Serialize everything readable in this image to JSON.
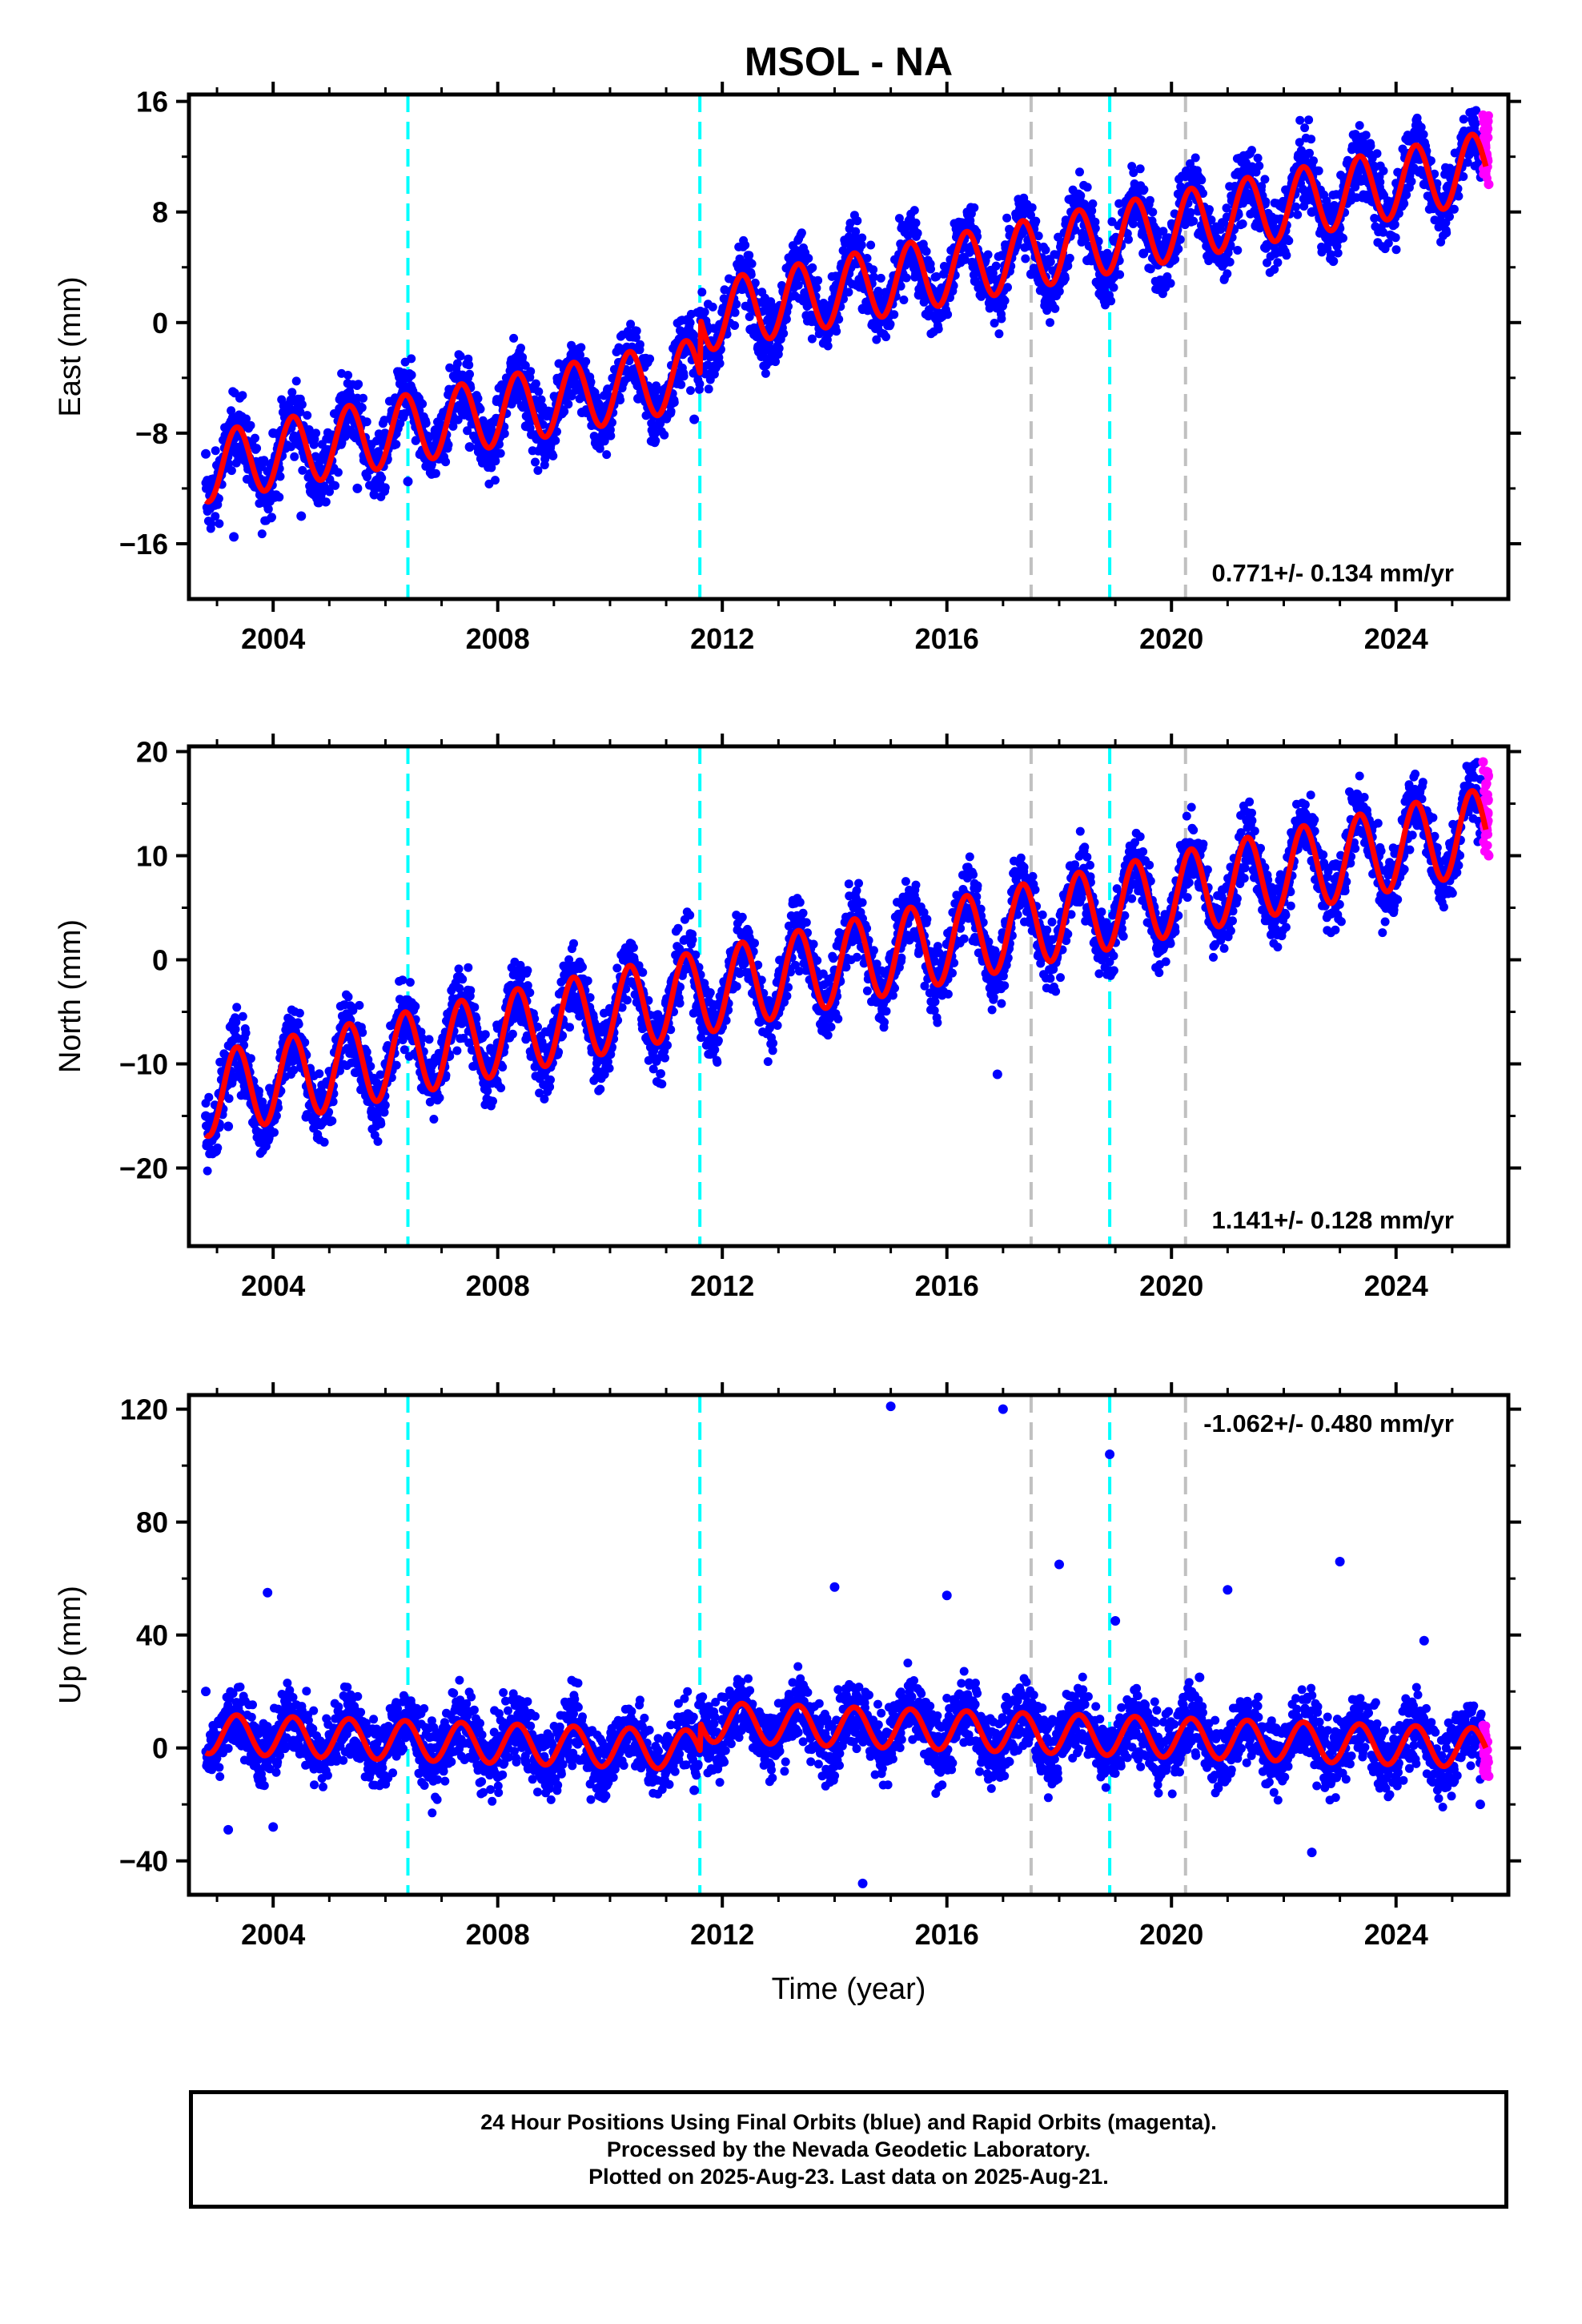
{
  "chart_data": [
    {
      "type": "scatter",
      "panel": "east",
      "title": "MSOL - NA",
      "ylabel": "East (mm)",
      "xlabel": "",
      "xlim": [
        2002.5,
        2026.0
      ],
      "ylim": [
        -20,
        16.5
      ],
      "yticks": [
        16,
        8,
        0,
        -8,
        -16
      ],
      "ytick_labels": [
        "16",
        "8",
        "0",
        "-8",
        "-16"
      ],
      "xticks": [
        2004,
        2008,
        2012,
        2016,
        2020,
        2024
      ],
      "xtick_labels": [
        "2004",
        "2008",
        "2012",
        "2016",
        "2020",
        "2024"
      ],
      "rate_label": "0.771+/- 0.134 mm/yr",
      "rate_position": "bottom-right",
      "trend": {
        "start_year": 2002.8,
        "end_year": 2025.6,
        "start_value": -8.5,
        "end_value": 9.3,
        "seasonal_amplitude": 2.5
      },
      "offsets": [
        {
          "year": 2011.6,
          "value": 4.0
        }
      ],
      "series": [
        {
          "color": "#0000ff",
          "x": [
            2002.8,
            2003.3,
            2004.0,
            2004.5,
            2005.5,
            2006.4,
            2007.5,
            2008.5,
            2009.5,
            2010.5,
            2011.5,
            2011.7,
            2012.5,
            2013.5,
            2014.5,
            2015.5,
            2016.5,
            2017.5,
            2018.5,
            2019.5,
            2020.5,
            2021.5,
            2022.5,
            2023.5,
            2024.5,
            2025.5
          ],
          "y": [
            -9.5,
            -15.5,
            -8.0,
            -14.0,
            -12.0,
            -11.5,
            -9.0,
            -7.5,
            -6.5,
            -5.5,
            -7.0,
            0.0,
            -0.5,
            0.5,
            1.0,
            2.0,
            3.0,
            3.5,
            4.5,
            5.0,
            6.5,
            7.0,
            8.0,
            9.0,
            10.0,
            11.0
          ]
        },
        {
          "color": "#ff00ff",
          "x": [
            2025.55,
            2025.6,
            2025.65
          ],
          "y": [
            15.0,
            12.0,
            10.0
          ]
        }
      ],
      "vlines": [
        {
          "x": 2006.4,
          "color": "#00ffff"
        },
        {
          "x": 2011.6,
          "color": "#00ffff"
        },
        {
          "x": 2017.5,
          "color": "#c0c0c0"
        },
        {
          "x": 2018.9,
          "color": "#00ffff"
        },
        {
          "x": 2020.25,
          "color": "#c0c0c0"
        }
      ]
    },
    {
      "type": "scatter",
      "panel": "north",
      "ylabel": "North (mm)",
      "xlabel": "",
      "xlim": [
        2002.5,
        2026.0
      ],
      "ylim": [
        -27.5,
        20.5
      ],
      "yticks": [
        20,
        10,
        0,
        -10,
        -20
      ],
      "ytick_labels": [
        "20",
        "10",
        "0",
        "-10",
        "-20"
      ],
      "xticks": [
        2004,
        2008,
        2012,
        2016,
        2020,
        2024
      ],
      "xtick_labels": [
        "2004",
        "2008",
        "2012",
        "2016",
        "2020",
        "2024"
      ],
      "rate_label": "1.141+/- 0.128 mm/yr",
      "rate_position": "bottom-right",
      "trend": {
        "start_year": 2002.8,
        "end_year": 2025.6,
        "start_value": -13.0,
        "end_value": 12.5,
        "seasonal_amplitude": 4.0
      },
      "offsets": [],
      "series": [
        {
          "color": "#0000ff",
          "x": [
            2002.8,
            2003.2,
            2004.0,
            2005.0,
            2006.0,
            2007.0,
            2008.0,
            2009.0,
            2010.0,
            2011.0,
            2012.0,
            2013.0,
            2014.0,
            2015.0,
            2016.0,
            2016.9,
            2017.5,
            2018.5,
            2019.5,
            2020.5,
            2021.5,
            2022.5,
            2023.5,
            2024.5,
            2025.5
          ],
          "y": [
            -15.0,
            -16.0,
            -13.0,
            -12.0,
            -10.0,
            -9.0,
            -8.0,
            -6.0,
            -5.0,
            -4.0,
            -3.0,
            -2.0,
            -1.0,
            0.5,
            1.5,
            -11.0,
            4.0,
            5.0,
            6.5,
            7.0,
            8.5,
            9.5,
            10.5,
            12.0,
            13.0
          ]
        },
        {
          "color": "#ff00ff",
          "x": [
            2025.55,
            2025.6,
            2025.65
          ],
          "y": [
            19.0,
            14.0,
            10.0
          ]
        }
      ],
      "vlines": [
        {
          "x": 2006.4,
          "color": "#00ffff"
        },
        {
          "x": 2011.6,
          "color": "#00ffff"
        },
        {
          "x": 2017.5,
          "color": "#c0c0c0"
        },
        {
          "x": 2018.9,
          "color": "#00ffff"
        },
        {
          "x": 2020.25,
          "color": "#c0c0c0"
        }
      ]
    },
    {
      "type": "scatter",
      "panel": "up",
      "ylabel": "Up (mm)",
      "xlabel": "Time (year)",
      "xlim": [
        2002.5,
        2026.0
      ],
      "ylim": [
        -52,
        125
      ],
      "yticks": [
        120,
        80,
        40,
        0,
        -40
      ],
      "ytick_labels": [
        "120",
        "80",
        "40",
        "0",
        "-40"
      ],
      "xticks": [
        2004,
        2008,
        2012,
        2016,
        2020,
        2024
      ],
      "xtick_labels": [
        "2004",
        "2008",
        "2012",
        "2016",
        "2020",
        "2024"
      ],
      "rate_label": "-1.062+/- 0.480 mm/yr",
      "rate_position": "top-right",
      "trend": {
        "start_year": 2002.8,
        "end_year": 2025.6,
        "start_value": 10.0,
        "end_value": -5.0,
        "seasonal_amplitude": 7.0
      },
      "offsets": [
        {
          "year": 2011.6,
          "value": 10.0
        }
      ],
      "series": [
        {
          "color": "#0000ff",
          "x": [
            2002.8,
            2003.2,
            2003.9,
            2004.0,
            2005.5,
            2007.0,
            2008.5,
            2010.0,
            2011.5,
            2012.0,
            2013.0,
            2014.0,
            2014.5,
            2015.0,
            2016.0,
            2017.0,
            2018.0,
            2018.9,
            2019.0,
            2020.5,
            2021.0,
            2022.5,
            2023.0,
            2024.5,
            2025.5
          ],
          "y": [
            20.0,
            -29.0,
            55.0,
            -28.0,
            10.0,
            0.0,
            -5.0,
            -10.0,
            -15.0,
            10.0,
            5.0,
            57.0,
            -48.0,
            121.0,
            54.0,
            120.0,
            65.0,
            104.0,
            45.0,
            25.0,
            56.0,
            -37.0,
            66.0,
            38.0,
            -20.0
          ]
        },
        {
          "color": "#ff00ff",
          "x": [
            2025.55,
            2025.6,
            2025.65
          ],
          "y": [
            8.0,
            0.0,
            -10.0
          ]
        }
      ],
      "vlines": [
        {
          "x": 2006.4,
          "color": "#00ffff"
        },
        {
          "x": 2011.6,
          "color": "#00ffff"
        },
        {
          "x": 2017.5,
          "color": "#c0c0c0"
        },
        {
          "x": 2018.9,
          "color": "#00ffff"
        },
        {
          "x": 2020.25,
          "color": "#c0c0c0"
        }
      ]
    }
  ],
  "colors": {
    "final_orbits": "#0000ff",
    "rapid_orbits": "#ff00ff",
    "model": "#ff0000",
    "equipment_change": "#00ffff",
    "other_event": "#c0c0c0"
  },
  "footer": {
    "line1": "24 Hour Positions Using Final Orbits (blue) and Rapid Orbits (magenta).",
    "line2": "Processed by the Nevada Geodetic Laboratory.",
    "line3": "Plotted on 2025-Aug-23. Last data on 2025-Aug-21."
  }
}
